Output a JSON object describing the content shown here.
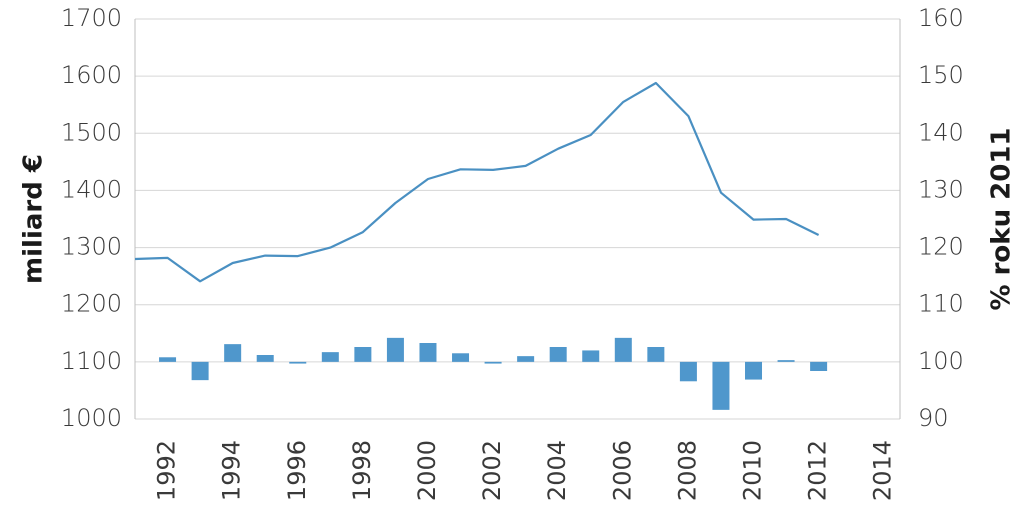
{
  "chart_data": {
    "type": "line+bar",
    "title": "",
    "x": [
      1991,
      1992,
      1993,
      1994,
      1995,
      1996,
      1997,
      1998,
      1999,
      2000,
      2001,
      2002,
      2003,
      2004,
      2005,
      2006,
      2007,
      2008,
      2009,
      2010,
      2011,
      2012
    ],
    "xticks": [
      "1992",
      "1994",
      "1996",
      "1998",
      "2000",
      "2002",
      "2004",
      "2006",
      "2008",
      "2010",
      "2012",
      "2014"
    ],
    "xlim": [
      1991,
      2014.5
    ],
    "y_left": {
      "label": "miliard €",
      "ticks": [
        "1000",
        "1100",
        "1200",
        "1300",
        "1400",
        "1500",
        "1600",
        "1700"
      ],
      "lim": [
        1000,
        1700
      ]
    },
    "y_right": {
      "label": "% roku 2011",
      "ticks": [
        "90",
        "100",
        "110",
        "120",
        "130",
        "140",
        "150",
        "160"
      ],
      "lim": [
        90,
        160
      ]
    },
    "series": [
      {
        "type": "line",
        "axis": "left",
        "color": "#4a90c2",
        "values": [
          1280,
          1282,
          1241,
          1273,
          1286,
          1285,
          1300,
          1327,
          1378,
          1420,
          1437,
          1436,
          1443,
          1473,
          1497,
          1555,
          1588,
          1530,
          1396,
          1349,
          1350,
          1322
        ]
      },
      {
        "type": "bar",
        "axis": "left",
        "baseline": 1100,
        "color": "#4f97cc",
        "values": [
          null,
          1108,
          1068,
          1131,
          1112,
          1097,
          1117,
          1126,
          1142,
          1133,
          1115,
          1097,
          1110,
          1126,
          1120,
          1142,
          1126,
          1066,
          1016,
          1069,
          1103,
          1084
        ]
      }
    ],
    "grid": true
  }
}
